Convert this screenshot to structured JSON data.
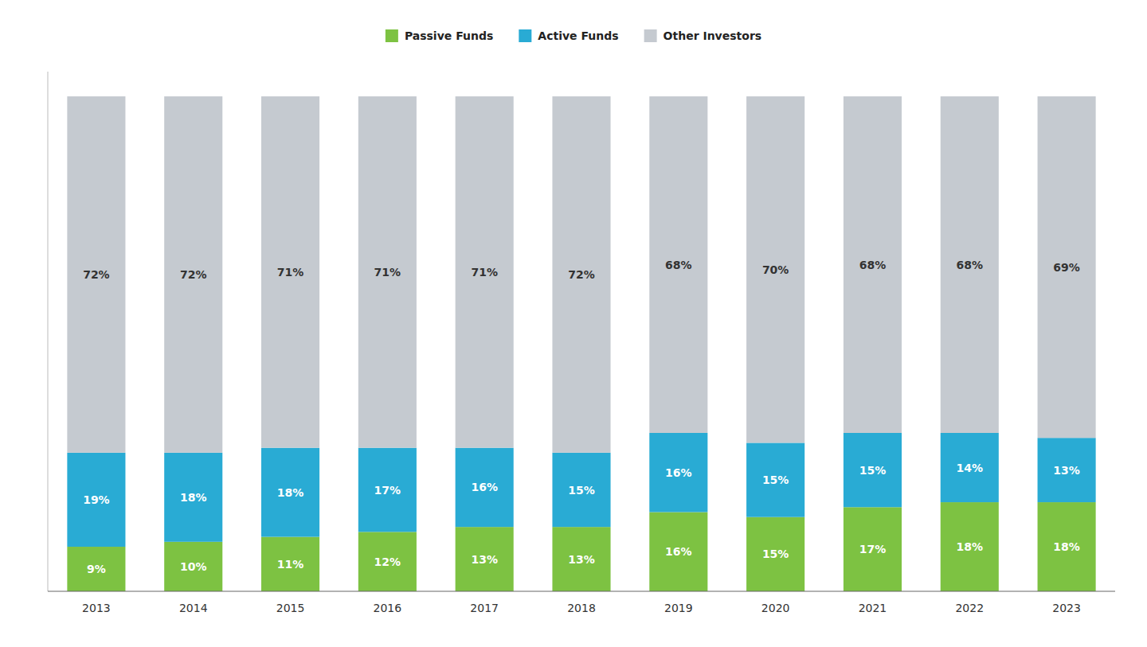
{
  "chart_data": {
    "type": "bar",
    "stacked": true,
    "categories": [
      "2013",
      "2014",
      "2015",
      "2016",
      "2017",
      "2018",
      "2019",
      "2020",
      "2021",
      "2022",
      "2023"
    ],
    "series": [
      {
        "name": "Passive Funds",
        "color": "#7DC242",
        "values": [
          9,
          10,
          11,
          12,
          13,
          13,
          16,
          15,
          17,
          18,
          18
        ],
        "value_labels": [
          "9%",
          "10%",
          "11%",
          "12%",
          "13%",
          "13%",
          "16%",
          "15%",
          "17%",
          "18%",
          "18%"
        ]
      },
      {
        "name": "Active Funds",
        "color": "#29ABD4",
        "values": [
          19,
          18,
          18,
          17,
          16,
          15,
          16,
          15,
          15,
          14,
          13
        ],
        "value_labels": [
          "19%",
          "18%",
          "18%",
          "17%",
          "16%",
          "15%",
          "16%",
          "15%",
          "15%",
          "14%",
          "13%"
        ]
      },
      {
        "name": "Other Investors",
        "color": "#C5CAD0",
        "values": [
          72,
          72,
          71,
          71,
          71,
          72,
          68,
          70,
          68,
          68,
          69
        ],
        "value_labels": [
          "72%",
          "72%",
          "71%",
          "71%",
          "71%",
          "72%",
          "68%",
          "70%",
          "68%",
          "68%",
          "69%"
        ]
      }
    ],
    "ylim": [
      0,
      105
    ],
    "grid": false,
    "legend": "top",
    "data_labels": true,
    "tick_labels": "x"
  }
}
